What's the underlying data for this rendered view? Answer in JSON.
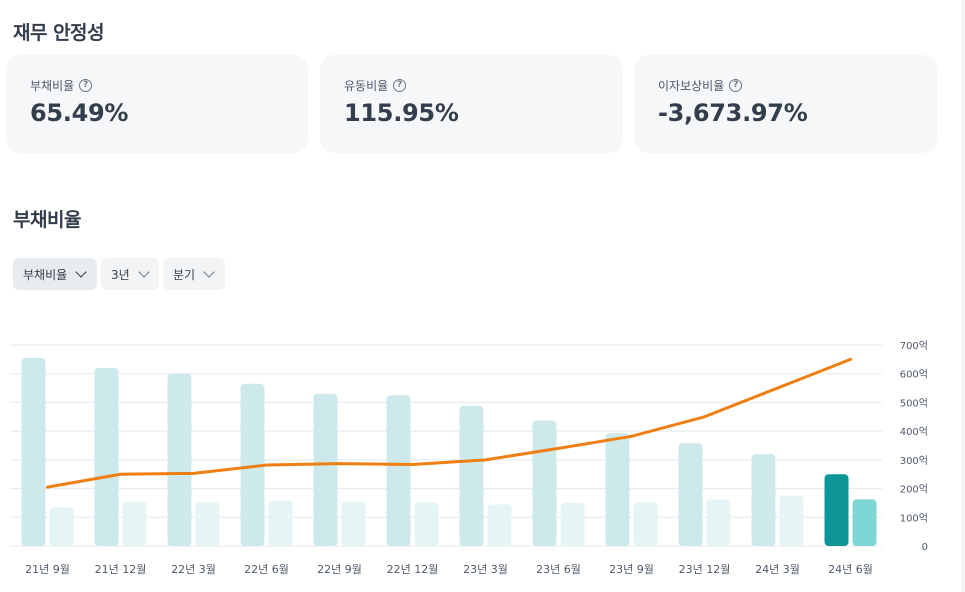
{
  "sections": {
    "stability_title": "재무 안정성",
    "debt_ratio_title": "부채비율"
  },
  "cards": [
    {
      "label": "부채비율",
      "value": "65.49%"
    },
    {
      "label": "유동비율",
      "value": "115.95%"
    },
    {
      "label": "이자보상비율",
      "value": "-3,673.97%"
    }
  ],
  "help_glyph": "?",
  "filters": [
    {
      "label": "부채비율"
    },
    {
      "label": "3년"
    },
    {
      "label": "분기"
    }
  ],
  "colors": {
    "bar_primary": "#cde9eb",
    "bar_secondary": "#e5f5f5",
    "bar_primary_highlight": "#0e9596",
    "bar_secondary_highlight": "#7dd6d3",
    "line": "#ef7f12",
    "grid": "#e5e8eb"
  },
  "chart_data": {
    "type": "bar",
    "categories": [
      "21년 9월",
      "21년 12월",
      "22년 3월",
      "22년 6월",
      "22년 9월",
      "22년 12월",
      "23년 3월",
      "23년 6월",
      "23년 9월",
      "23년 12월",
      "24년 3월",
      "24년 6월"
    ],
    "series": [
      {
        "values": [
          655,
          620,
          600,
          565,
          530,
          525,
          488,
          437,
          393,
          358,
          320,
          250
        ]
      },
      {
        "values": [
          135,
          155,
          152,
          158,
          155,
          152,
          145,
          150,
          152,
          162,
          175,
          163
        ]
      },
      {
        "type": "line",
        "values": [
          205,
          250,
          253,
          282,
          287,
          284,
          300,
          340,
          382,
          450,
          550,
          650
        ]
      }
    ],
    "ylim": [
      0,
      700
    ],
    "yticks": [
      {
        "value": 0,
        "label": "0"
      },
      {
        "value": 100,
        "label": "100억"
      },
      {
        "value": 200,
        "label": "200억"
      },
      {
        "value": 300,
        "label": "300억"
      },
      {
        "value": 400,
        "label": "400억"
      },
      {
        "value": 500,
        "label": "500억"
      },
      {
        "value": 600,
        "label": "600억"
      },
      {
        "value": 700,
        "label": "700억"
      }
    ],
    "highlight_index": 11,
    "grid": true
  }
}
